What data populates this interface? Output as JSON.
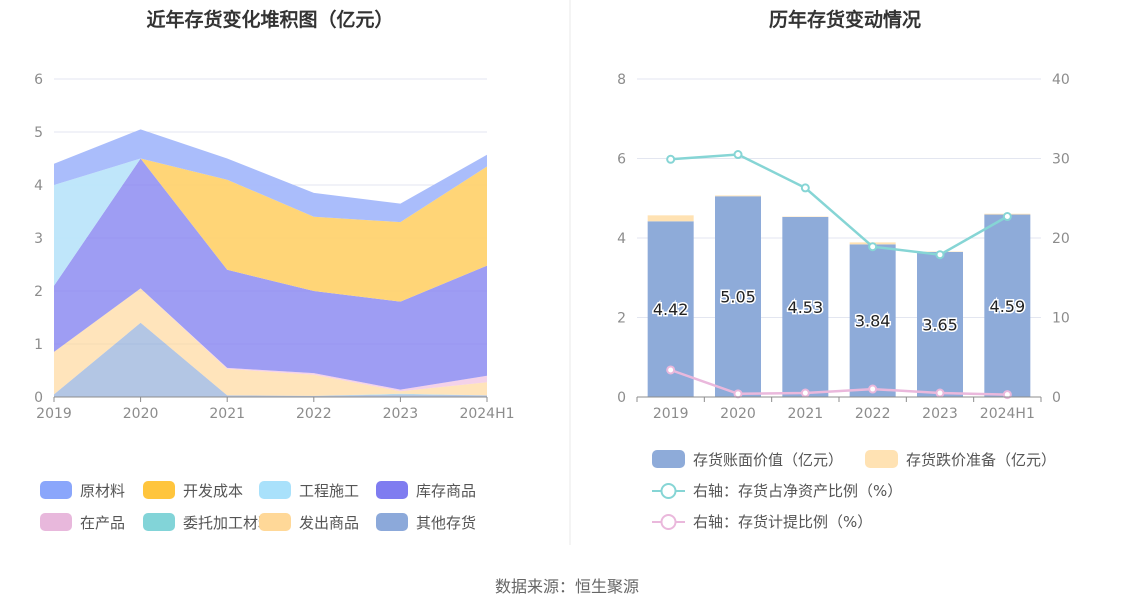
{
  "source_label": "数据来源：恒生聚源",
  "colors": {
    "title": "#333333",
    "axis_text": "#8c8c8c",
    "grid": "#e3e6f0",
    "legend_text": "#555555",
    "source_text": "#666666",
    "divider": "#e9e9e9",
    "bar_label": "#222222"
  },
  "chart_data": [
    {
      "type": "area",
      "title": "近年存货变化堆积图（亿元）",
      "categories": [
        "2019",
        "2020",
        "2021",
        "2022",
        "2023",
        "2024H1"
      ],
      "y_ticks": [
        "0",
        "1",
        "2",
        "3",
        "4",
        "5",
        "6"
      ],
      "ylim": [
        0,
        6.5
      ],
      "stacked": true,
      "series": [
        {
          "name": "其他存货",
          "color": "#8ba8d6",
          "opacity": 0.65,
          "values": [
            0.05,
            1.4,
            0.03,
            0.02,
            0.05,
            0.03
          ]
        },
        {
          "name": "委托加工材料",
          "color": "#7fd3d6",
          "opacity": 0.5,
          "values": [
            0.0,
            0.0,
            0.0,
            0.0,
            0.01,
            0.0
          ]
        },
        {
          "name": "发出商品",
          "color": "#ffd697",
          "opacity": 0.65,
          "values": [
            0.8,
            0.65,
            0.5,
            0.4,
            0.05,
            0.25
          ]
        },
        {
          "name": "在产品",
          "color": "#f0bfe0",
          "opacity": 0.7,
          "values": [
            0.0,
            0.0,
            0.02,
            0.03,
            0.03,
            0.12
          ]
        },
        {
          "name": "库存商品",
          "color": "#8684f0",
          "opacity": 0.8,
          "values": [
            1.25,
            2.45,
            1.85,
            1.55,
            1.66,
            2.08
          ]
        },
        {
          "name": "工程施工",
          "color": "#bce5fa",
          "opacity": 0.95,
          "values": [
            1.9,
            0.0,
            0.0,
            0.0,
            0.0,
            0.0
          ]
        },
        {
          "name": "开发成本",
          "color": "#ffd370",
          "opacity": 0.95,
          "values": [
            0.0,
            0.0,
            1.7,
            1.4,
            1.5,
            1.87
          ]
        },
        {
          "name": "原材料",
          "color": "#a5b9fb",
          "opacity": 0.95,
          "values": [
            0.4,
            0.55,
            0.4,
            0.45,
            0.35,
            0.22
          ]
        }
      ],
      "legend": [
        {
          "name": "原材料",
          "color": "#8aa6fb"
        },
        {
          "name": "开发成本",
          "color": "#ffc53d"
        },
        {
          "name": "工程施工",
          "color": "#a9e1fb"
        },
        {
          "name": "库存商品",
          "color": "#7f7cf0"
        },
        {
          "name": "在产品",
          "color": "#e8b8dc"
        },
        {
          "name": "委托加工材料",
          "color": "#82d4d8"
        },
        {
          "name": "发出商品",
          "color": "#ffd898"
        },
        {
          "name": "其他存货",
          "color": "#8ca9da"
        }
      ]
    },
    {
      "type": "bar+line",
      "title": "历年存货变动情况",
      "categories": [
        "2019",
        "2020",
        "2021",
        "2022",
        "2023",
        "2024H1"
      ],
      "y_left_ticks": [
        "0",
        "2",
        "4",
        "6",
        "8"
      ],
      "y_left_lim": [
        0,
        8
      ],
      "y_right_ticks": [
        "0",
        "10",
        "20",
        "30",
        "40"
      ],
      "y_right_lim": [
        0,
        40
      ],
      "bars": [
        {
          "name": "存货账面价值（亿元）",
          "color": "#8eabd9",
          "values": [
            4.42,
            5.05,
            4.53,
            3.84,
            3.65,
            4.59
          ],
          "labels": [
            "4.42",
            "5.05",
            "4.53",
            "3.84",
            "3.65",
            "4.59"
          ]
        },
        {
          "name": "存货跌价准备（亿元）",
          "color": "#ffe2b3",
          "values": [
            0.15,
            0.02,
            0.01,
            0.05,
            0.01,
            0.02
          ]
        }
      ],
      "lines": [
        {
          "name": "右轴：存货占净资产比例（%）",
          "color": "#86d5d5",
          "values": [
            29.9,
            30.5,
            26.3,
            18.9,
            17.9,
            22.7
          ]
        },
        {
          "name": "右轴：存货计提比例（%）",
          "color": "#eab8dc",
          "values": [
            3.4,
            0.4,
            0.5,
            1.0,
            0.5,
            0.3
          ]
        }
      ]
    }
  ]
}
